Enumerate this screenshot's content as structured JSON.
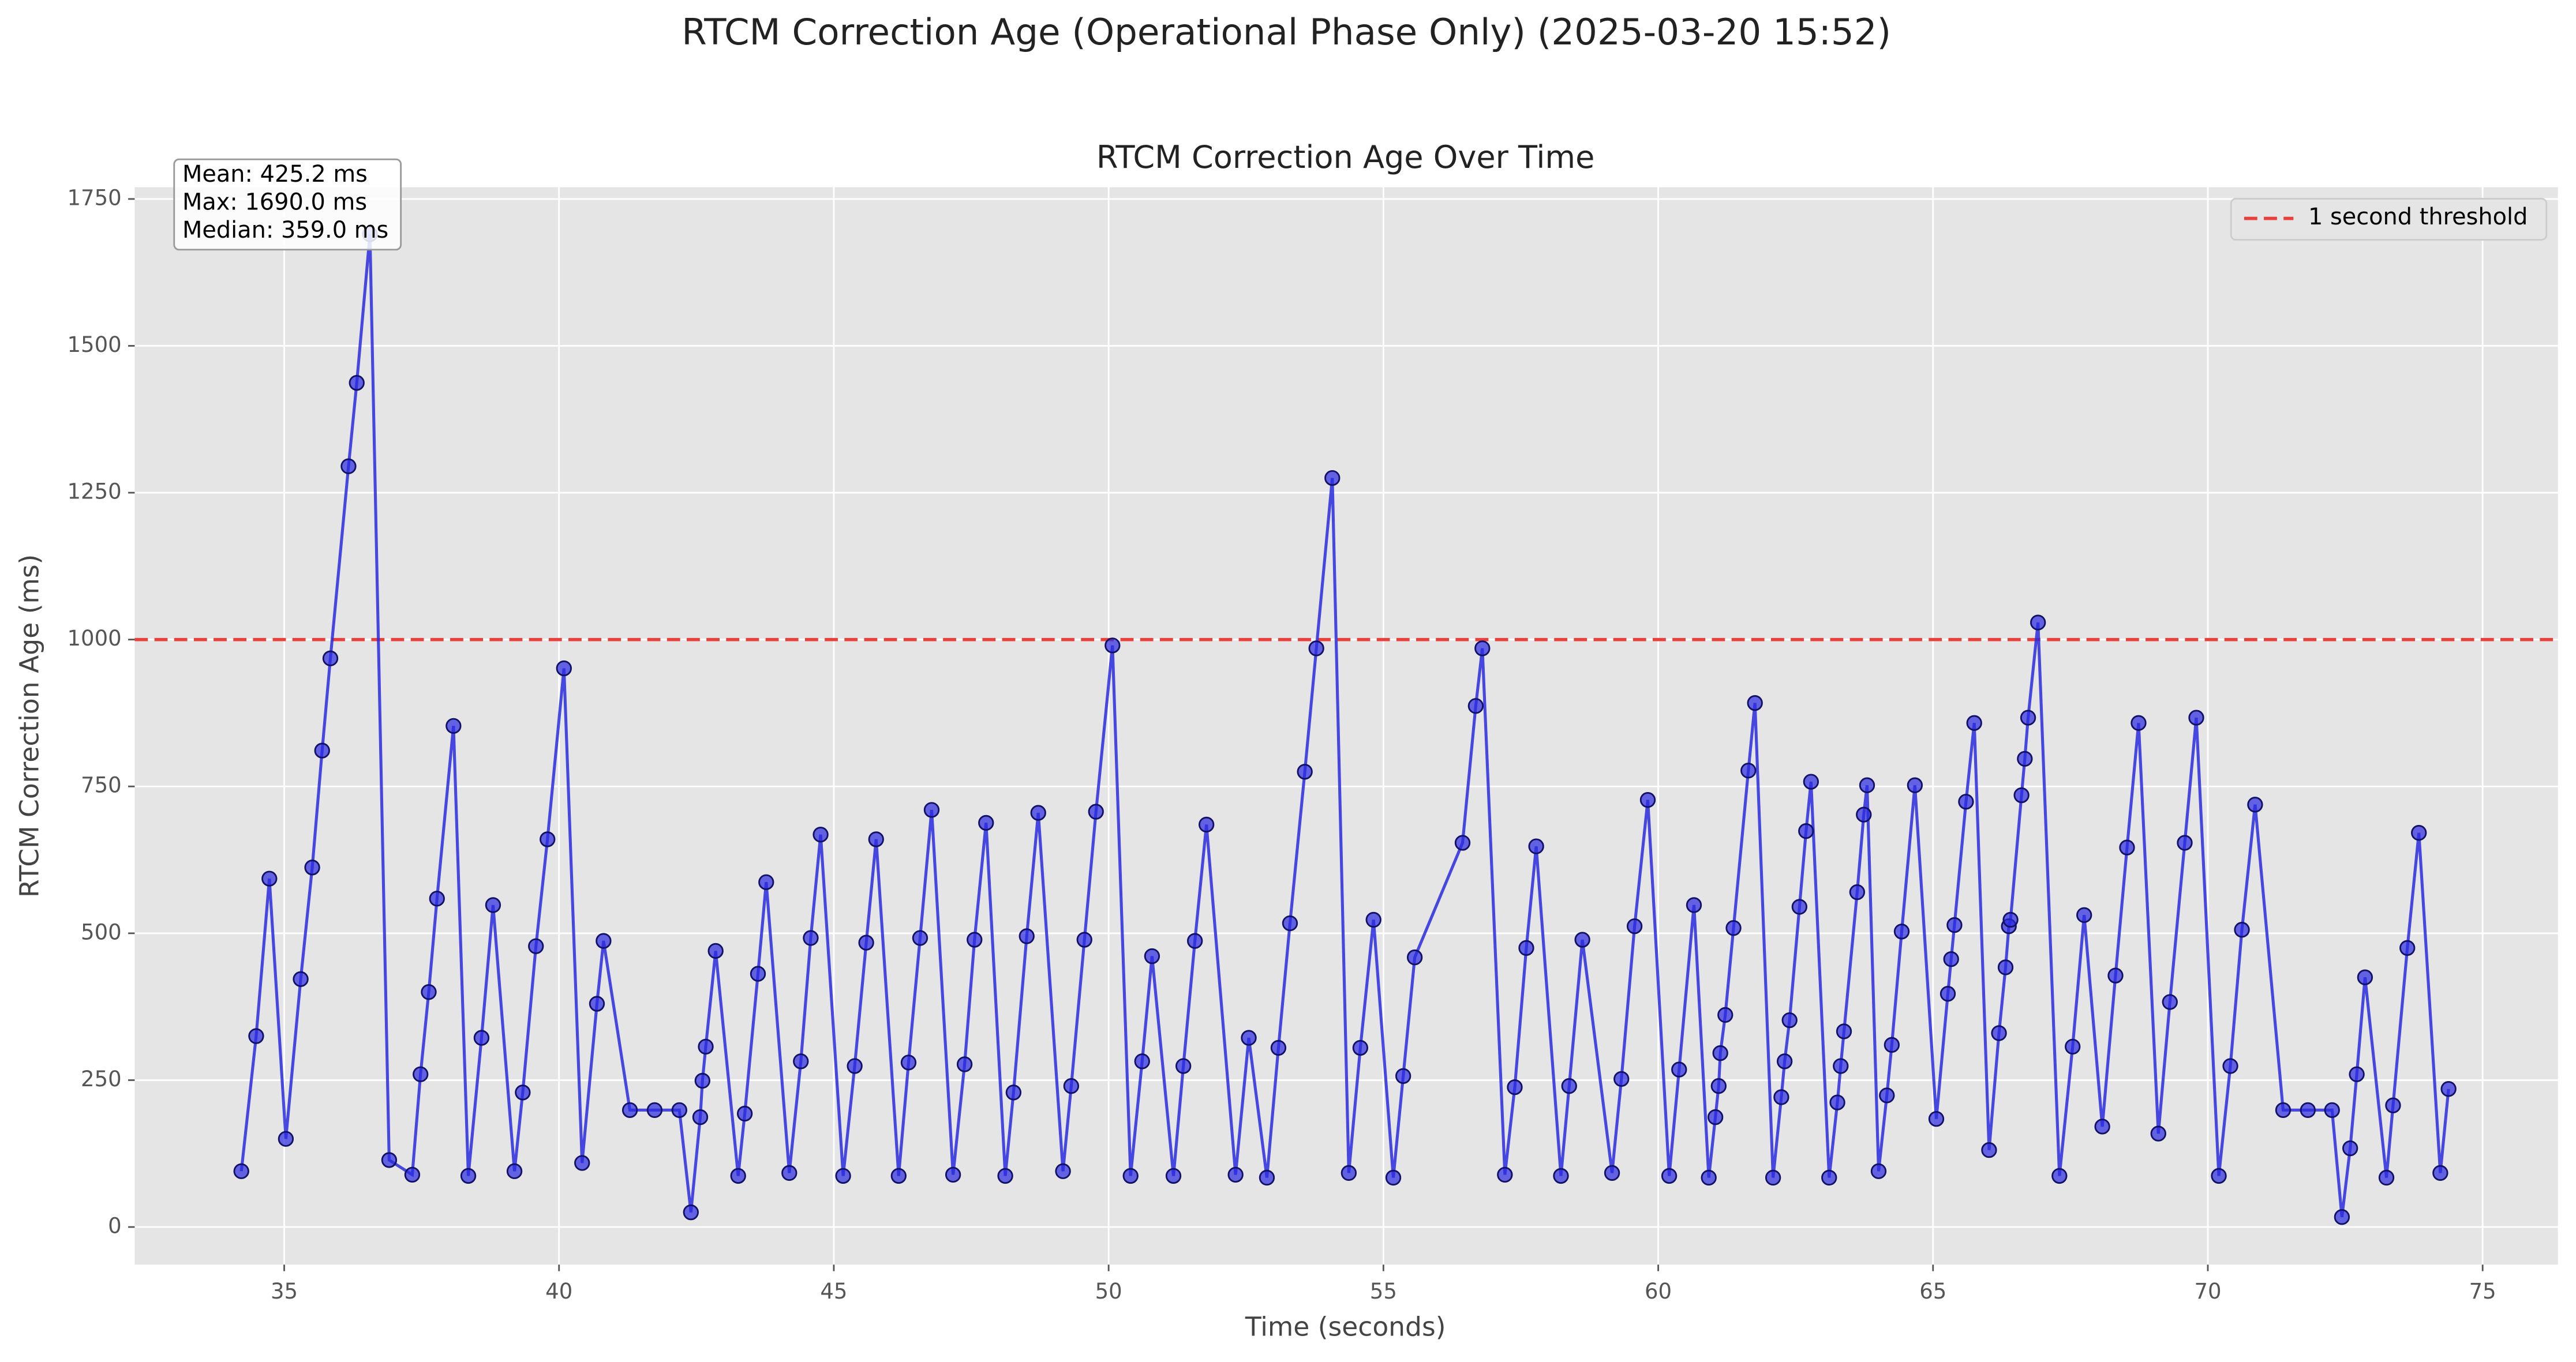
{
  "chart_data": {
    "type": "line",
    "suptitle": "RTCM Correction Age (Operational Phase Only) (2025-03-20 15:52)",
    "title": "RTCM Correction Age Over Time",
    "xlabel": "Time (seconds)",
    "ylabel": "RTCM Correction Age (ms)",
    "color": "#2a2ae0",
    "grid": true,
    "legend_position": "upper right",
    "annotation": [
      "Mean: 425.2 ms",
      "Max: 1690.0 ms",
      "Median: 359.0 ms"
    ],
    "threshold": {
      "value": 1000,
      "label": "1 second threshold",
      "color": "#e8403a"
    },
    "xlim": [
      32.28,
      76.37
    ],
    "ylim": [
      -64,
      1770
    ],
    "xticks": [
      35,
      40,
      45,
      50,
      55,
      60,
      65,
      70,
      75
    ],
    "yticks": [
      0,
      250,
      500,
      750,
      1000,
      1250,
      1500,
      1750
    ],
    "x": [
      34.22,
      34.49,
      34.73,
      35.03,
      35.3,
      35.51,
      35.69,
      35.84,
      36.17,
      36.32,
      36.56,
      36.91,
      37.33,
      37.48,
      37.63,
      37.78,
      38.08,
      38.35,
      38.59,
      38.8,
      39.19,
      39.34,
      39.58,
      39.79,
      40.09,
      40.42,
      40.69,
      40.81,
      41.29,
      41.74,
      42.19,
      42.4,
      42.57,
      42.61,
      42.67,
      42.85,
      43.26,
      43.38,
      43.62,
      43.77,
      44.19,
      44.4,
      44.58,
      44.76,
      45.17,
      45.38,
      45.59,
      45.77,
      46.18,
      46.36,
      46.57,
      46.78,
      47.17,
      47.38,
      47.56,
      47.77,
      48.12,
      48.27,
      48.51,
      48.72,
      49.17,
      49.32,
      49.56,
      49.77,
      50.07,
      50.4,
      50.61,
      50.79,
      51.18,
      51.36,
      51.57,
      51.78,
      52.31,
      52.55,
      52.88,
      53.09,
      53.3,
      53.57,
      53.78,
      54.07,
      54.37,
      54.58,
      54.82,
      55.18,
      55.36,
      55.57,
      56.44,
      56.68,
      56.8,
      57.21,
      57.39,
      57.6,
      57.78,
      58.23,
      58.38,
      58.62,
      59.16,
      59.33,
      59.57,
      59.81,
      60.2,
      60.38,
      60.65,
      60.92,
      61.04,
      61.1,
      61.13,
      61.22,
      61.37,
      61.64,
      61.76,
      62.09,
      62.24,
      62.3,
      62.39,
      62.57,
      62.69,
      62.78,
      63.11,
      63.26,
      63.32,
      63.38,
      63.62,
      63.74,
      63.8,
      64.01,
      64.16,
      64.25,
      64.43,
      64.67,
      65.06,
      65.27,
      65.33,
      65.39,
      65.6,
      65.75,
      66.02,
      66.2,
      66.32,
      66.38,
      66.41,
      66.61,
      66.67,
      66.73,
      66.91,
      67.3,
      67.54,
      67.75,
      68.08,
      68.32,
      68.53,
      68.74,
      69.1,
      69.31,
      69.58,
      69.79,
      70.2,
      70.41,
      70.62,
      70.86,
      71.37,
      71.82,
      72.26,
      72.44,
      72.59,
      72.71,
      72.86,
      73.25,
      73.37,
      73.63,
      73.84,
      74.23,
      74.38
    ],
    "values": [
      95,
      325,
      593,
      150,
      422,
      612,
      811,
      968,
      1295,
      1437,
      1690,
      114,
      89,
      260,
      400,
      559,
      853,
      87,
      322,
      548,
      95,
      229,
      478,
      660,
      951,
      109,
      380,
      487,
      199,
      199,
      199,
      25,
      187,
      249,
      307,
      470,
      87,
      193,
      431,
      587,
      92,
      282,
      492,
      668,
      87,
      274,
      484,
      660,
      87,
      280,
      492,
      710,
      89,
      277,
      489,
      688,
      87,
      229,
      495,
      705,
      95,
      240,
      489,
      707,
      990,
      87,
      282,
      461,
      87,
      274,
      487,
      685,
      89,
      322,
      84,
      305,
      517,
      775,
      985,
      1275,
      92,
      305,
      523,
      84,
      257,
      459,
      654,
      887,
      985,
      89,
      238,
      475,
      648,
      87,
      240,
      489,
      92,
      252,
      512,
      727,
      87,
      268,
      548,
      84,
      187,
      240,
      296,
      361,
      509,
      777,
      892,
      84,
      221,
      282,
      352,
      545,
      674,
      758,
      84,
      212,
      274,
      333,
      570,
      702,
      752,
      95,
      224,
      310,
      503,
      752,
      184,
      397,
      456,
      514,
      724,
      858,
      131,
      330,
      442,
      512,
      523,
      735,
      797,
      867,
      1029,
      87,
      307,
      531,
      171,
      428,
      646,
      858,
      159,
      383,
      654,
      867,
      87,
      274,
      506,
      719,
      199,
      199,
      199,
      17,
      134,
      260,
      425,
      84,
      207,
      475,
      671,
      92,
      235
    ]
  }
}
